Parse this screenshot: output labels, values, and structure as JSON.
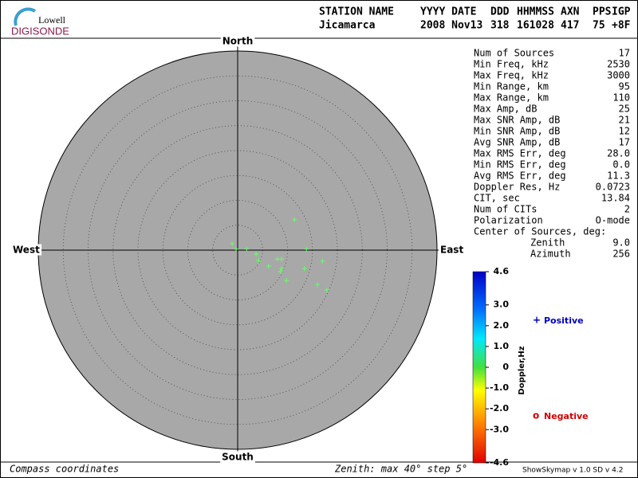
{
  "header": {
    "logo_top": "Lowell",
    "logo_bottom": "DIGISONDE",
    "columns": [
      {
        "label": "STATION NAME",
        "value": "Jicamarca"
      },
      {
        "label": "YYYY DATE",
        "value": "2008 Nov13"
      },
      {
        "label": "DDD",
        "value": "318"
      },
      {
        "label": "HHMMSS",
        "value": "161028"
      },
      {
        "label": "AXN",
        "value": "417"
      },
      {
        "label": "PPS",
        "value": "75"
      },
      {
        "label": "IGP",
        "value": "+8F"
      }
    ]
  },
  "stats": [
    [
      "Num of Sources",
      "17"
    ],
    [
      "Min Freq, kHz",
      "2530"
    ],
    [
      "Max Freq, kHz",
      "3000"
    ],
    [
      "Min Range, km",
      "95"
    ],
    [
      "Max Range, km",
      "110"
    ],
    [
      "Max Amp, dB",
      "25"
    ],
    [
      "Max SNR Amp, dB",
      "21"
    ],
    [
      "Min SNR Amp, dB",
      "12"
    ],
    [
      "Avg SNR Amp, dB",
      "17"
    ],
    [
      "Max RMS Err, deg",
      "28.0"
    ],
    [
      "Min RMS Err, deg",
      "0.0"
    ],
    [
      "Avg RMS Err, deg",
      "11.3"
    ],
    [
      "Doppler Res, Hz",
      "0.0723"
    ],
    [
      "CIT, sec",
      "13.84"
    ],
    [
      "Num of CITs",
      "2"
    ],
    [
      "Polarization",
      "O-mode"
    ],
    [
      "Center of Sources, deg:",
      ""
    ],
    [
      "Zenith",
      "9.0"
    ],
    [
      "Azimuth",
      "256"
    ]
  ],
  "chart_data": {
    "type": "polar-scatter",
    "directions": {
      "north": "North",
      "south": "South",
      "west": "West",
      "east": "East"
    },
    "xlim": [
      -40,
      40
    ],
    "ylim": [
      -40,
      40
    ],
    "rings": [
      5,
      10,
      15,
      20,
      25,
      30,
      35,
      40
    ],
    "series": [
      {
        "name": "Positive",
        "color": "#66ff66",
        "x": [
          11.4,
          -1.1,
          -0.3,
          1.8,
          3.7,
          4.2,
          13.8,
          8.0,
          8.8,
          6.2,
          17.0,
          8.8,
          13.4,
          8.6,
          9.8,
          16.0,
          17.9
        ],
        "values": [
          6.1,
          1.3,
          0.2,
          0.2,
          -0.8,
          -2.1,
          0.2,
          -1.8,
          -1.8,
          -3.2,
          -2.2,
          -3.7,
          -3.7,
          -4.3,
          -6.1,
          -6.9,
          -8.0
        ]
      }
    ],
    "colorbar": {
      "label": "Doppler,Hz",
      "lim": [
        -4.6,
        4.6
      ],
      "ticks": [
        4.6,
        {
          "value": 3,
          "label": "3.0"
        },
        {
          "value": 2,
          "label": "2.0"
        },
        {
          "value": 1,
          "label": "1.0"
        },
        0,
        {
          "value": -1,
          "label": "-1.0"
        },
        {
          "value": -2,
          "label": "-2.0"
        },
        {
          "value": -3,
          "label": "-3.0"
        },
        -4.6
      ]
    },
    "legend": {
      "positive_symbol": "+",
      "positive": "Positive",
      "negative_symbol": "o",
      "negative": "Negative"
    }
  },
  "footer": {
    "left": "Compass coordinates",
    "center": "Zenith: max 40°  step 5°",
    "right": "ShowSkymap v 1.0   SD v 4.2"
  }
}
